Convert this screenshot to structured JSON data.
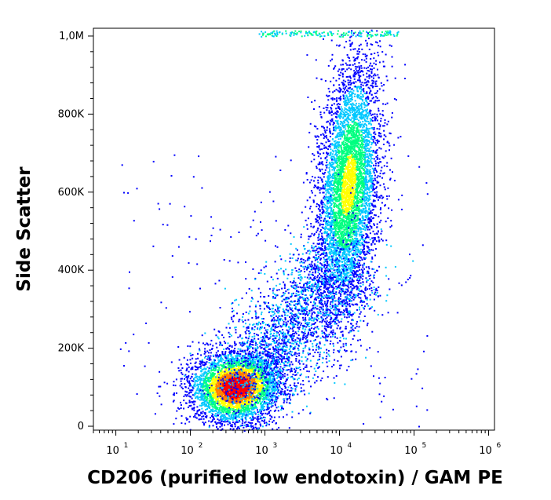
{
  "chart_data": {
    "type": "scatter",
    "subtype": "flow-cytometry-density-plot",
    "title": "",
    "xlabel": "CD206 (purified low endotoxin) / GAM PE",
    "ylabel": "Side Scatter",
    "x_scale": "log",
    "xlim": [
      5,
      1200000
    ],
    "ylim": [
      -10000,
      1020000
    ],
    "x_ticks": [
      {
        "value": 10,
        "base": "10",
        "exp": "1"
      },
      {
        "value": 100,
        "base": "10",
        "exp": "2"
      },
      {
        "value": 1000,
        "base": "10",
        "exp": "3"
      },
      {
        "value": 10000,
        "base": "10",
        "exp": "4"
      },
      {
        "value": 100000,
        "base": "10",
        "exp": "5"
      },
      {
        "value": 1000000,
        "base": "10",
        "exp": "6"
      }
    ],
    "y_ticks": [
      {
        "value": 0,
        "label": "0"
      },
      {
        "value": 200000,
        "label": "200K"
      },
      {
        "value": 400000,
        "label": "400K"
      },
      {
        "value": 600000,
        "label": "600K"
      },
      {
        "value": 800000,
        "label": "800K"
      },
      {
        "value": 1000000,
        "label": "1,0M"
      }
    ],
    "populations": [
      {
        "name": "low",
        "x_center": 400,
        "y_center": 100000,
        "x_spread_decades": 0.3,
        "y_spread": 45000,
        "peak_density": 1.0
      },
      {
        "name": "high",
        "x_center": 13000,
        "y_center": 620000,
        "x_spread_decades": 0.2,
        "y_spread": 160000,
        "peak_density": 0.55
      }
    ],
    "color_scale": [
      "#0000ff",
      "#00c8ff",
      "#00ff80",
      "#ffff00",
      "#ff8000",
      "#ff0000"
    ],
    "grid": false,
    "legend": "none"
  }
}
